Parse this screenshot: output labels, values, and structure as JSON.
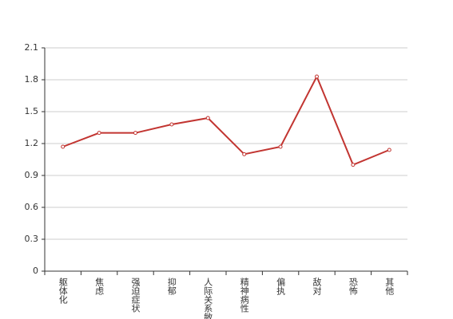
{
  "chart_data": {
    "type": "line",
    "categories": [
      "躯体化",
      "焦虑",
      "强迫症状",
      "抑郁",
      "人际关系敏感",
      "精神病性",
      "偏执",
      "敌对",
      "恐怖",
      "其他"
    ],
    "values": [
      1.17,
      1.3,
      1.3,
      1.38,
      1.44,
      1.1,
      1.17,
      1.83,
      1.0,
      1.14
    ],
    "color": "#c23531",
    "ylim": [
      0,
      2.1
    ],
    "yticks": [
      0,
      {
        "value": 0.3,
        "label": "0.3"
      },
      {
        "value": 0.6,
        "label": "0.6"
      },
      {
        "value": 0.9,
        "label": "0.9"
      },
      {
        "value": 1.2,
        "label": "1.2"
      },
      {
        "value": 1.5,
        "label": "1.5"
      },
      {
        "value": 1.8,
        "label": "1.8"
      },
      {
        "value": 2.1,
        "label": "2.1"
      }
    ],
    "grid": true
  }
}
